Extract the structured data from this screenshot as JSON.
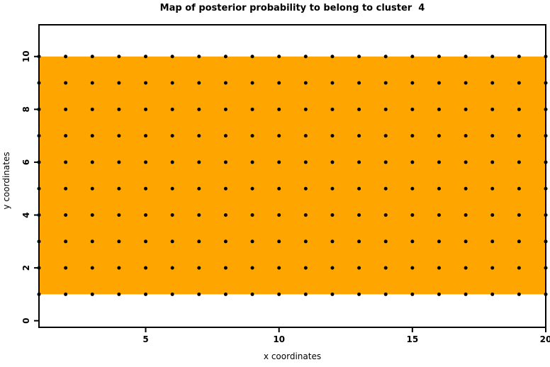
{
  "chart_data": {
    "type": "scatter",
    "title": "Map of posterior probability to belong to cluster  4",
    "xlabel": "x coordinates",
    "ylabel": "y coordinates",
    "xlim": [
      1,
      20
    ],
    "ylim": [
      -0.25,
      11.2
    ],
    "x_ticks": [
      5,
      10,
      15,
      20
    ],
    "y_ticks": [
      0,
      2,
      4,
      6,
      8,
      10
    ],
    "grid": "off",
    "legend": "none",
    "frame_box": true,
    "background_color": "#FFFFFF",
    "axis_color": "#000000",
    "region": {
      "description": "high posterior probability area for cluster 4",
      "x_range": [
        1,
        20
      ],
      "y_range": [
        1,
        10
      ],
      "fill": "#FFA500"
    },
    "points": {
      "marker": "filled-circle",
      "color": "#000000",
      "radius_px": 2.5,
      "x_values": [
        1,
        2,
        3,
        4,
        5,
        6,
        7,
        8,
        9,
        10,
        11,
        12,
        13,
        14,
        15,
        16,
        17,
        18,
        19,
        20
      ],
      "y_values": [
        1,
        2,
        3,
        4,
        5,
        6,
        7,
        8,
        9,
        10
      ]
    }
  }
}
